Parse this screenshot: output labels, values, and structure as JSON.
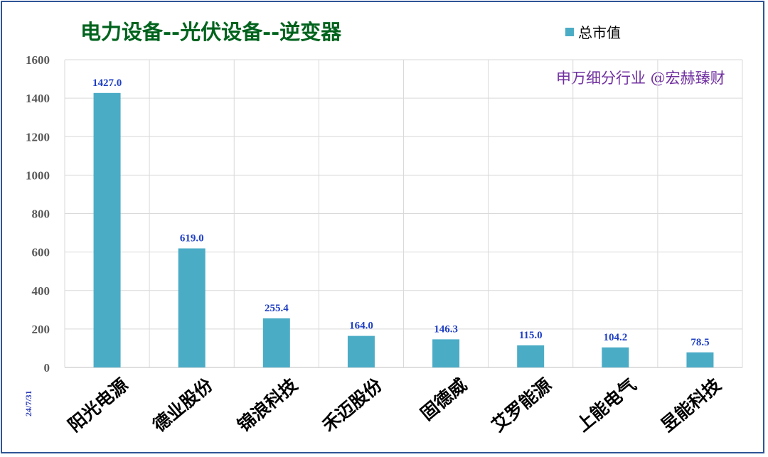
{
  "title": "电力设备--光伏设备--逆变器",
  "watermark": "申万细分行业 @宏赫臻财",
  "date_label": "24/7/31",
  "colors": {
    "bar": "#4bacc6",
    "title": "#00631d",
    "watermark": "#7030a0",
    "data_label": "#1f3fc4",
    "frame": "#2f5496"
  },
  "chart_data": {
    "type": "bar",
    "categories": [
      "阳光电源",
      "德业股份",
      "锦浪科技",
      "禾迈股份",
      "固德威",
      "艾罗能源",
      "上能电气",
      "昱能科技"
    ],
    "series": [
      {
        "name": "总市值",
        "values": [
          1427.0,
          619.0,
          255.4,
          164.0,
          146.3,
          115.0,
          104.2,
          78.5
        ]
      }
    ],
    "data_labels": [
      "1427.0",
      "619.0",
      "255.4",
      "164.0",
      "146.3",
      "115.0",
      "104.2",
      "78.5"
    ],
    "yticks": [
      "0",
      "200",
      "400",
      "600",
      "800",
      "1000",
      "1200",
      "1400",
      "1600"
    ],
    "ylim": [
      0,
      1600
    ],
    "grid": true,
    "legend_position": "top-right"
  }
}
